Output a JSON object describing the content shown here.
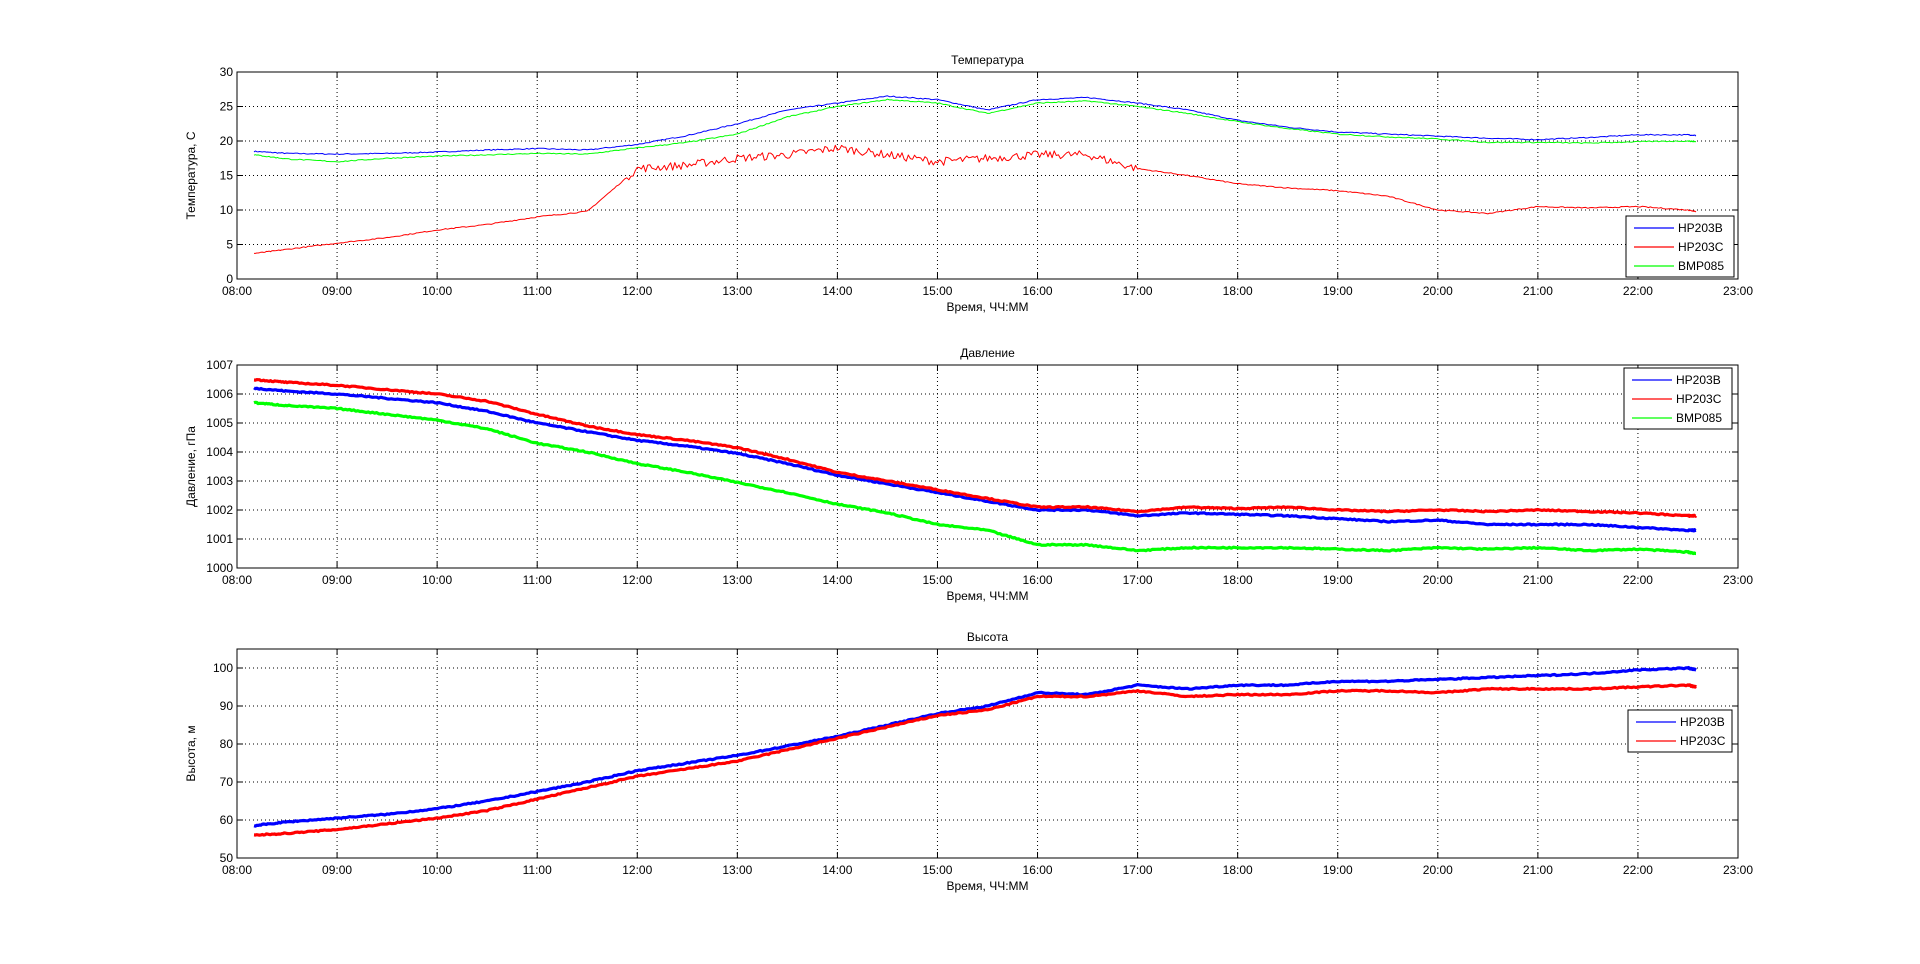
{
  "chart_data": [
    {
      "type": "line",
      "title": "Температура",
      "xlabel": "Время, ЧЧ:ММ",
      "ylabel": "Температура, С",
      "xlim": [
        8,
        23
      ],
      "ylim": [
        0,
        30
      ],
      "yticks": [
        0,
        5,
        10,
        15,
        20,
        25,
        30
      ],
      "xtick_labels": [
        "08:00",
        "09:00",
        "10:00",
        "11:00",
        "12:00",
        "13:00",
        "14:00",
        "15:00",
        "16:00",
        "17:00",
        "18:00",
        "19:00",
        "20:00",
        "21:00",
        "22:00",
        "23:00"
      ],
      "grid": true,
      "legend_position": "bottom-right",
      "x": [
        8.17,
        8.5,
        9,
        9.5,
        10,
        10.5,
        11,
        11.5,
        12,
        12.5,
        13,
        13.5,
        14,
        14.5,
        15,
        15.5,
        16,
        16.5,
        17,
        17.5,
        18,
        18.5,
        19,
        19.5,
        20,
        20.5,
        21,
        21.5,
        22,
        22.5,
        22.58
      ],
      "series": [
        {
          "name": "HP203B",
          "color": "#0000ff",
          "values": [
            18.5,
            18.2,
            18.1,
            18.2,
            18.4,
            18.7,
            18.9,
            18.7,
            19.5,
            20.8,
            22.5,
            24.5,
            25.5,
            26.5,
            26,
            24.5,
            26,
            26.3,
            25.5,
            24.5,
            23,
            22,
            21.3,
            21,
            20.7,
            20.4,
            20.2,
            20.5,
            20.9,
            20.9,
            20.8
          ]
        },
        {
          "name": "HP203C",
          "color": "#ff0000",
          "values": [
            3.7,
            4.3,
            5.2,
            6.0,
            7.1,
            7.9,
            9.0,
            9.8,
            16,
            16.5,
            17.5,
            18,
            19,
            18,
            17,
            17.5,
            18,
            18,
            16,
            15,
            13.8,
            13.2,
            12.8,
            12,
            10,
            9.5,
            10.5,
            10.3,
            10.5,
            10,
            9.8
          ]
        },
        {
          "name": "BMP085",
          "color": "#00ff00",
          "values": [
            18,
            17.4,
            17,
            17.5,
            17.8,
            18,
            18.2,
            18.1,
            19,
            19.8,
            21,
            23.5,
            25,
            26,
            25.5,
            24,
            25.5,
            25.8,
            25,
            24,
            22.8,
            21.8,
            21,
            20.6,
            20.3,
            19.8,
            19.8,
            19.7,
            19.9,
            20,
            19.9
          ]
        }
      ]
    },
    {
      "type": "line",
      "title": "Давление",
      "xlabel": "Время, ЧЧ:ММ",
      "ylabel": "Давление, гПа",
      "xlim": [
        8,
        23
      ],
      "ylim": [
        1000,
        1007
      ],
      "yticks": [
        1000,
        1001,
        1002,
        1003,
        1004,
        1005,
        1006,
        1007
      ],
      "xtick_labels": [
        "08:00",
        "09:00",
        "10:00",
        "11:00",
        "12:00",
        "13:00",
        "14:00",
        "15:00",
        "16:00",
        "17:00",
        "18:00",
        "19:00",
        "20:00",
        "21:00",
        "22:00",
        "23:00"
      ],
      "grid": true,
      "legend_position": "top-right",
      "x": [
        8.17,
        8.5,
        9,
        9.5,
        10,
        10.5,
        11,
        11.5,
        12,
        12.5,
        13,
        13.5,
        14,
        14.5,
        15,
        15.5,
        16,
        16.5,
        17,
        17.5,
        18,
        18.5,
        19,
        19.5,
        20,
        20.5,
        21,
        21.5,
        22,
        22.5,
        22.58
      ],
      "series": [
        {
          "name": "HP203B",
          "color": "#0000ff",
          "values": [
            1006.2,
            1006.1,
            1006.0,
            1005.85,
            1005.7,
            1005.4,
            1005.0,
            1004.7,
            1004.4,
            1004.2,
            1003.95,
            1003.6,
            1003.2,
            1002.9,
            1002.6,
            1002.3,
            1002.0,
            1002.0,
            1001.8,
            1001.9,
            1001.85,
            1001.8,
            1001.7,
            1001.6,
            1001.65,
            1001.5,
            1001.5,
            1001.5,
            1001.4,
            1001.3,
            1001.3
          ]
        },
        {
          "name": "HP203C",
          "color": "#ff0000",
          "values": [
            1006.5,
            1006.4,
            1006.3,
            1006.15,
            1006.0,
            1005.75,
            1005.3,
            1004.9,
            1004.6,
            1004.4,
            1004.15,
            1003.75,
            1003.3,
            1003.0,
            1002.7,
            1002.4,
            1002.1,
            1002.1,
            1001.95,
            1002.1,
            1002.05,
            1002.1,
            1002.0,
            1001.95,
            1002.0,
            1001.95,
            1002.0,
            1001.95,
            1001.9,
            1001.8,
            1001.8
          ]
        },
        {
          "name": "BMP085",
          "color": "#00ff00",
          "values": [
            1005.7,
            1005.6,
            1005.5,
            1005.3,
            1005.1,
            1004.8,
            1004.3,
            1004.0,
            1003.6,
            1003.3,
            1002.95,
            1002.6,
            1002.2,
            1001.9,
            1001.5,
            1001.3,
            1000.8,
            1000.8,
            1000.6,
            1000.7,
            1000.7,
            1000.7,
            1000.65,
            1000.6,
            1000.7,
            1000.65,
            1000.7,
            1000.6,
            1000.65,
            1000.55,
            1000.5
          ]
        }
      ]
    },
    {
      "type": "line",
      "title": "Высота",
      "xlabel": "Время, ЧЧ:ММ",
      "ylabel": "Высота, м",
      "xlim": [
        8,
        23
      ],
      "ylim": [
        50,
        105
      ],
      "yticks": [
        50,
        60,
        70,
        80,
        90,
        100
      ],
      "xtick_labels": [
        "08:00",
        "09:00",
        "10:00",
        "11:00",
        "12:00",
        "13:00",
        "14:00",
        "15:00",
        "16:00",
        "17:00",
        "18:00",
        "19:00",
        "20:00",
        "21:00",
        "22:00",
        "23:00"
      ],
      "grid": true,
      "legend_position": "right",
      "x": [
        8.17,
        8.5,
        9,
        9.5,
        10,
        10.5,
        11,
        11.5,
        12,
        12.5,
        13,
        13.5,
        14,
        14.5,
        15,
        15.5,
        16,
        16.5,
        17,
        17.5,
        18,
        18.5,
        19,
        19.5,
        20,
        20.5,
        21,
        21.5,
        22,
        22.5,
        22.58
      ],
      "series": [
        {
          "name": "HP203B",
          "color": "#0000ff",
          "values": [
            58.5,
            59.5,
            60.5,
            61.5,
            63,
            65,
            67.5,
            70,
            73,
            75,
            77,
            79.5,
            82,
            85,
            88,
            90,
            93.5,
            93,
            95.5,
            94.5,
            95.5,
            95.5,
            96.5,
            96.5,
            97,
            97.5,
            98,
            98.5,
            99.5,
            100,
            99.5
          ]
        },
        {
          "name": "HP203C",
          "color": "#ff0000",
          "values": [
            56,
            56.5,
            57.5,
            59,
            60.5,
            62.5,
            65.5,
            68.5,
            71.5,
            73.5,
            75.5,
            78.5,
            81.5,
            84.5,
            87.5,
            89,
            92.5,
            92.5,
            94,
            92.5,
            93,
            93,
            94,
            94,
            93.5,
            94.5,
            94.5,
            94.5,
            95,
            95.5,
            95
          ]
        }
      ]
    }
  ]
}
